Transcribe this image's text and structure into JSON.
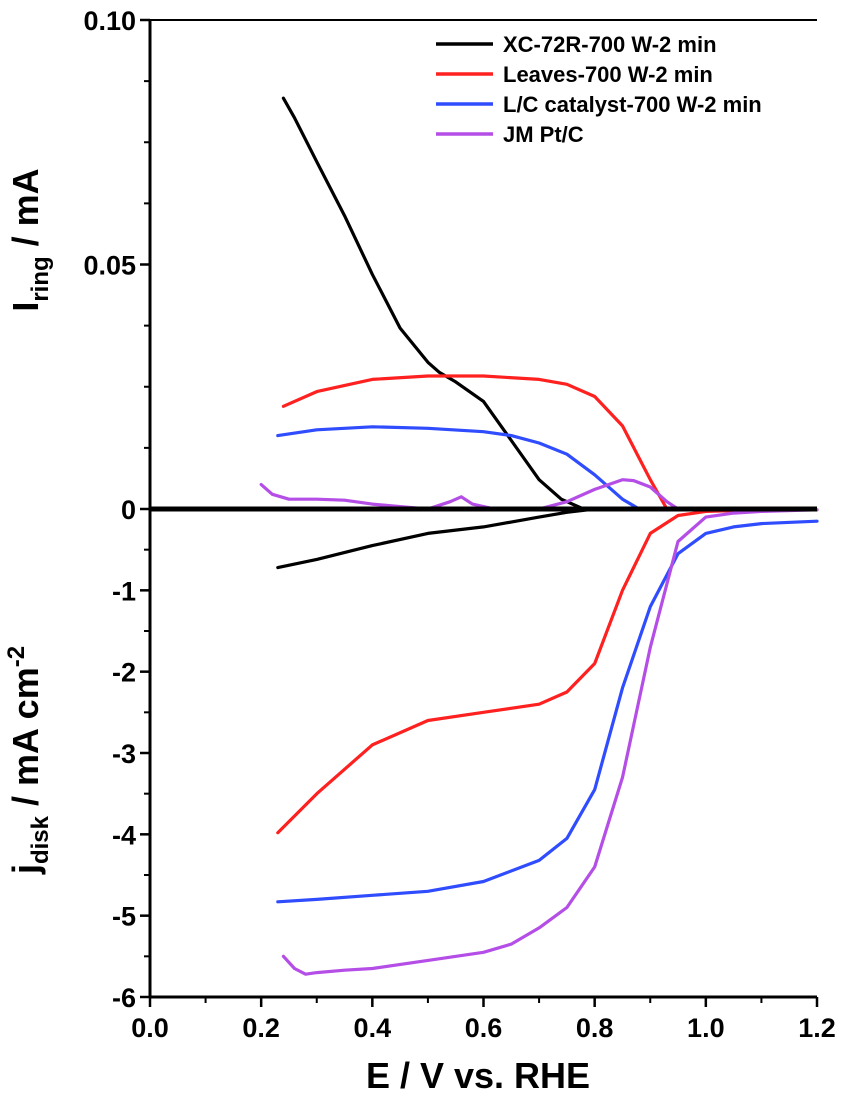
{
  "chart_data": {
    "type": "line",
    "xlabel": "E / V vs. RHE",
    "xlim": [
      0.0,
      1.2
    ],
    "x_ticks": [
      "0.0",
      "0.2",
      "0.4",
      "0.6",
      "0.8",
      "1.0",
      "1.2"
    ],
    "colors": {
      "XC-72R-700 W-2 min": "#000000",
      "Leaves-700 W-2 min": "#ff2020",
      "L/C catalyst-700 W-2 min": "#2f4cff",
      "JM Pt/C": "#b44ee6"
    },
    "legend_position": "top-right",
    "panels": [
      {
        "id": "ring",
        "ylabel_main": "I",
        "ylabel_sub": "ring",
        "ylabel_rest": " / mA",
        "ylim": [
          0,
          0.1
        ],
        "y_ticks": [
          "0.10",
          "0.05",
          "0"
        ],
        "series": [
          {
            "name": "XC-72R-700 W-2 min",
            "x": [
              0.24,
              0.26,
              0.3,
              0.35,
              0.4,
              0.45,
              0.5,
              0.52,
              0.55,
              0.6,
              0.65,
              0.7,
              0.74,
              0.78
            ],
            "y": [
              0.084,
              0.08,
              0.071,
              0.06,
              0.048,
              0.037,
              0.03,
              0.028,
              0.026,
              0.022,
              0.014,
              0.006,
              0.002,
              0.0
            ]
          },
          {
            "name": "Leaves-700 W-2 min",
            "x": [
              0.24,
              0.3,
              0.4,
              0.5,
              0.6,
              0.7,
              0.75,
              0.8,
              0.85,
              0.9,
              0.93
            ],
            "y": [
              0.021,
              0.024,
              0.0265,
              0.0272,
              0.0272,
              0.0265,
              0.0255,
              0.023,
              0.017,
              0.006,
              0.0
            ]
          },
          {
            "name": "L/C catalyst-700 W-2 min",
            "x": [
              0.23,
              0.3,
              0.4,
              0.5,
              0.6,
              0.65,
              0.7,
              0.75,
              0.8,
              0.85,
              0.88
            ],
            "y": [
              0.015,
              0.0162,
              0.0168,
              0.0165,
              0.0158,
              0.015,
              0.0135,
              0.0112,
              0.007,
              0.002,
              0.0
            ]
          },
          {
            "name": "JM Pt/C",
            "x": [
              0.2,
              0.22,
              0.25,
              0.3,
              0.35,
              0.4,
              0.45,
              0.5,
              0.54,
              0.56,
              0.58,
              0.62,
              0.7,
              0.75,
              0.8,
              0.85,
              0.87,
              0.9,
              0.93,
              0.95
            ],
            "y": [
              0.005,
              0.003,
              0.002,
              0.002,
              0.0018,
              0.001,
              0.0005,
              0.0,
              0.0015,
              0.0025,
              0.001,
              0.0,
              0.0,
              0.0015,
              0.004,
              0.006,
              0.0058,
              0.0045,
              0.0015,
              0.0
            ]
          }
        ]
      },
      {
        "id": "disk",
        "ylabel_main": "j",
        "ylabel_sub": "disk",
        "ylabel_rest": " / mA cm",
        "ylabel_sup": "-2",
        "ylim": [
          -6,
          0
        ],
        "y_ticks": [
          "-1",
          "-2",
          "-3",
          "-4",
          "-5",
          "-6"
        ],
        "series": [
          {
            "name": "XC-72R-700 W-2 min",
            "x": [
              0.23,
              0.3,
              0.4,
              0.5,
              0.6,
              0.7,
              0.75,
              0.8
            ],
            "y": [
              -0.72,
              -0.62,
              -0.45,
              -0.3,
              -0.22,
              -0.1,
              -0.04,
              0.0
            ]
          },
          {
            "name": "Leaves-700 W-2 min",
            "x": [
              0.23,
              0.3,
              0.4,
              0.5,
              0.6,
              0.7,
              0.75,
              0.8,
              0.85,
              0.9,
              0.95,
              1.0,
              1.1,
              1.2
            ],
            "y": [
              -3.98,
              -3.5,
              -2.9,
              -2.6,
              -2.5,
              -2.4,
              -2.25,
              -1.9,
              -1.0,
              -0.3,
              -0.08,
              -0.03,
              -0.01,
              -0.01
            ]
          },
          {
            "name": "L/C catalyst-700 W-2 min",
            "x": [
              0.23,
              0.3,
              0.4,
              0.5,
              0.6,
              0.7,
              0.75,
              0.8,
              0.85,
              0.9,
              0.95,
              1.0,
              1.05,
              1.1,
              1.2
            ],
            "y": [
              -4.83,
              -4.8,
              -4.75,
              -4.7,
              -4.58,
              -4.32,
              -4.05,
              -3.45,
              -2.2,
              -1.2,
              -0.55,
              -0.3,
              -0.22,
              -0.18,
              -0.15
            ]
          },
          {
            "name": "JM Pt/C",
            "x": [
              0.24,
              0.26,
              0.28,
              0.3,
              0.35,
              0.4,
              0.5,
              0.6,
              0.65,
              0.7,
              0.75,
              0.8,
              0.85,
              0.9,
              0.95,
              1.0,
              1.05,
              1.1,
              1.2
            ],
            "y": [
              -5.5,
              -5.65,
              -5.72,
              -5.7,
              -5.67,
              -5.65,
              -5.55,
              -5.45,
              -5.35,
              -5.15,
              -4.9,
              -4.4,
              -3.3,
              -1.7,
              -0.4,
              -0.1,
              -0.05,
              -0.03,
              -0.01
            ]
          }
        ]
      }
    ]
  }
}
